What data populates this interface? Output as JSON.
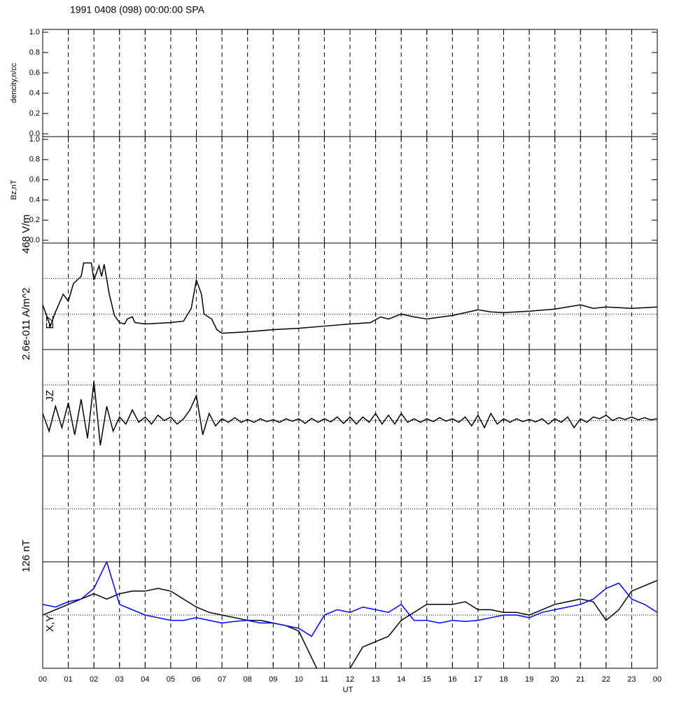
{
  "title": "1991 0408 (098) 00:00:00 SPA",
  "x_axis": {
    "label": "UT",
    "xlim": [
      0,
      24
    ],
    "xticks": [
      {
        "value": 0,
        "label": "00"
      },
      {
        "value": 1,
        "label": "01"
      },
      {
        "value": 2,
        "label": "02"
      },
      {
        "value": 3,
        "label": "03"
      },
      {
        "value": 4,
        "label": "04"
      },
      {
        "value": 5,
        "label": "05"
      },
      {
        "value": 6,
        "label": "06"
      },
      {
        "value": 7,
        "label": "07"
      },
      {
        "value": 8,
        "label": "08"
      },
      {
        "value": 9,
        "label": "09"
      },
      {
        "value": 10,
        "label": "10"
      },
      {
        "value": 11,
        "label": "11"
      },
      {
        "value": 12,
        "label": "12"
      },
      {
        "value": 13,
        "label": "13"
      },
      {
        "value": 14,
        "label": "14"
      },
      {
        "value": 15,
        "label": "15"
      },
      {
        "value": 16,
        "label": "16"
      },
      {
        "value": 17,
        "label": "17"
      },
      {
        "value": 18,
        "label": "18"
      },
      {
        "value": 19,
        "label": "19"
      },
      {
        "value": 20,
        "label": "20"
      },
      {
        "value": 21,
        "label": "21"
      },
      {
        "value": 22,
        "label": "22"
      },
      {
        "value": 23,
        "label": "23"
      },
      {
        "value": 24,
        "label": "00"
      }
    ]
  },
  "chart_data": [
    {
      "type": "line",
      "ylabel": "dencity,n/cc",
      "ylim": [
        0,
        1
      ],
      "yticks": [
        {
          "value": 0,
          "label": "0.0"
        },
        {
          "value": 0.2,
          "label": "0.2"
        },
        {
          "value": 0.4,
          "label": "0.4"
        },
        {
          "value": 0.6,
          "label": "0.6"
        },
        {
          "value": 0.8,
          "label": "0.8"
        },
        {
          "value": 1,
          "label": "1.0"
        }
      ],
      "x": [],
      "series": []
    },
    {
      "type": "line",
      "ylabel": "Bz,nT",
      "ylim": [
        0,
        1
      ],
      "yticks": [
        {
          "value": 0,
          "label": "0.0"
        },
        {
          "value": 0.2,
          "label": "0.2"
        },
        {
          "value": 0.4,
          "label": "0.4"
        },
        {
          "value": 0.6,
          "label": "0.6"
        },
        {
          "value": 0.8,
          "label": "0.8"
        },
        {
          "value": 1,
          "label": "1.0"
        }
      ],
      "x": [],
      "series": []
    },
    {
      "type": "line",
      "ylabel": "468 V/m",
      "label": "EZ",
      "ylim": [
        -1,
        2
      ],
      "ref_lines": [
        {
          "value": 0,
          "color": "#000000"
        },
        {
          "value": 1,
          "color": "#0000ff"
        }
      ],
      "x": [
        0,
        0.3,
        0.5,
        0.8,
        1,
        1.2,
        1.5,
        1.6,
        1.9,
        2,
        2.2,
        2.3,
        2.4,
        2.6,
        2.8,
        3,
        3.2,
        3.3,
        3.5,
        3.6,
        4,
        5,
        5.5,
        5.8,
        6,
        6.2,
        6.3,
        6.6,
        6.8,
        7,
        8,
        9,
        10,
        11,
        12,
        12.8,
        13.2,
        13.5,
        14,
        14.5,
        15,
        16,
        17,
        17.5,
        18,
        19,
        20,
        21,
        21.5,
        22,
        23,
        24
      ],
      "series": [
        {
          "color": "#000000",
          "values": [
            0.26,
            -0.34,
            0.06,
            0.56,
            0.36,
            0.86,
            1.06,
            1.44,
            1.44,
            0.96,
            1.36,
            1.06,
            1.4,
            0.56,
            -0.04,
            -0.24,
            -0.28,
            -0.14,
            -0.08,
            -0.24,
            -0.28,
            -0.24,
            -0.2,
            0.16,
            0.96,
            0.56,
            0,
            -0.14,
            -0.44,
            -0.54,
            -0.5,
            -0.44,
            -0.4,
            -0.34,
            -0.28,
            -0.24,
            -0.08,
            -0.14,
            0,
            -0.08,
            -0.14,
            -0.04,
            0.12,
            0.06,
            0.04,
            0.08,
            0.14,
            0.26,
            0.16,
            0.2,
            0.16,
            0.2
          ]
        }
      ]
    },
    {
      "type": "line",
      "ylabel": "2.6e-011 A/m^2",
      "label": "JZ",
      "ylim": [
        -1,
        2
      ],
      "ref_lines": [
        {
          "value": 0,
          "color": "#000000"
        },
        {
          "value": 1,
          "color": "#000000"
        }
      ],
      "x": [
        0,
        0.25,
        0.5,
        0.75,
        1,
        1.25,
        1.5,
        1.75,
        2,
        2.25,
        2.5,
        2.75,
        3,
        3.25,
        3.5,
        3.75,
        4,
        4.25,
        4.5,
        4.75,
        5,
        5.25,
        5.5,
        5.75,
        6,
        6.25,
        6.5,
        6.75,
        7,
        7.25,
        7.5,
        7.75,
        8,
        8.25,
        8.5,
        8.75,
        9,
        9.25,
        9.5,
        9.75,
        10,
        10.25,
        10.5,
        10.75,
        11,
        11.25,
        11.5,
        11.75,
        12,
        12.25,
        12.5,
        12.75,
        13,
        13.25,
        13.5,
        13.75,
        14,
        14.25,
        14.5,
        14.75,
        15,
        15.25,
        15.5,
        15.75,
        16,
        16.25,
        16.5,
        16.75,
        17,
        17.25,
        17.5,
        17.75,
        18,
        18.25,
        18.5,
        18.75,
        19,
        19.25,
        19.5,
        19.75,
        20,
        20.25,
        20.5,
        20.75,
        21,
        21.25,
        21.5,
        21.75,
        22,
        22.25,
        22.5,
        22.75,
        23,
        23.25,
        23.5,
        23.75,
        24
      ],
      "series": [
        {
          "color": "#000000",
          "values": [
            0.2,
            -0.3,
            0.4,
            -0.2,
            0.5,
            -0.4,
            0.6,
            -0.5,
            1.1,
            -0.7,
            0.4,
            -0.3,
            0.1,
            -0.1,
            0.3,
            -0.05,
            0.1,
            -0.1,
            0.15,
            0,
            0.1,
            -0.1,
            0.05,
            0.3,
            0.7,
            -0.4,
            0.2,
            -0.15,
            0.05,
            -0.05,
            0.08,
            -0.05,
            0.03,
            -0.05,
            0.05,
            -0.03,
            0.02,
            -0.05,
            0.05,
            -0.02,
            0.05,
            -0.08,
            0.06,
            -0.05,
            0.05,
            -0.04,
            0.1,
            -0.08,
            0.1,
            -0.1,
            0.1,
            -0.05,
            0.2,
            -0.1,
            0.15,
            -0.1,
            0.2,
            -0.05,
            0.05,
            -0.05,
            0.05,
            -0.03,
            0.08,
            -0.02,
            0.05,
            -0.05,
            0.1,
            -0.15,
            0.15,
            -0.2,
            0.2,
            -0.1,
            0.05,
            -0.05,
            0.05,
            -0.03,
            0.03,
            -0.04,
            0.05,
            -0.1,
            0.05,
            -0.05,
            0.1,
            -0.2,
            0.05,
            -0.05,
            0.1,
            0.05,
            0.15,
            0,
            0.08,
            0.03,
            0.1,
            0.02,
            0.08,
            0.02,
            0.05
          ]
        }
      ]
    },
    {
      "type": "line",
      "ylim": [
        -1,
        1
      ],
      "ref_lines": [
        {
          "value": 0,
          "color": "#000000"
        }
      ],
      "x": [],
      "series": []
    },
    {
      "type": "line",
      "ylabel": "126 nT",
      "label": "X,Y",
      "ylim": [
        -1,
        1
      ],
      "ref_lines": [
        {
          "value": 0,
          "color": "#000000"
        }
      ],
      "x": [
        0,
        0.5,
        1,
        1.5,
        2,
        2.5,
        3,
        3.5,
        4,
        4.5,
        5,
        5.5,
        6,
        6.5,
        7,
        7.5,
        8,
        8.5,
        9,
        9.5,
        10,
        10.5,
        11,
        11.5,
        12,
        12.5,
        13,
        13.5,
        14,
        14.5,
        15,
        15.5,
        16,
        16.5,
        17,
        17.5,
        18,
        18.5,
        19,
        19.5,
        20,
        20.5,
        21,
        21.5,
        22,
        22.5,
        23,
        23.5,
        24
      ],
      "series": [
        {
          "color": "#000000",
          "values": [
            0,
            0.1,
            0.2,
            0.3,
            0.4,
            0.3,
            0.4,
            0.45,
            0.45,
            0.5,
            0.45,
            0.3,
            0.15,
            0.05,
            0,
            -0.05,
            -0.1,
            -0.1,
            -0.15,
            -0.2,
            -0.3,
            -0.8,
            -1.3,
            -1.3,
            -1.0,
            -0.6,
            -0.5,
            -0.4,
            -0.1,
            0.05,
            0.2,
            0.2,
            0.2,
            0.25,
            0.1,
            0.1,
            0.05,
            0.05,
            0,
            0.1,
            0.2,
            0.25,
            0.3,
            0.25,
            -0.1,
            0.1,
            0.45,
            0.55,
            0.65
          ]
        },
        {
          "color": "#0000ff",
          "values": [
            0.2,
            0.15,
            0.25,
            0.3,
            0.5,
            1.0,
            0.2,
            0.1,
            0,
            -0.05,
            -0.1,
            -0.1,
            -0.05,
            -0.1,
            -0.15,
            -0.12,
            -0.1,
            -0.15,
            -0.15,
            -0.2,
            -0.25,
            -0.4,
            0,
            0.1,
            0.05,
            0.15,
            0.1,
            0.05,
            0.2,
            -0.1,
            -0.1,
            -0.15,
            -0.1,
            -0.12,
            -0.1,
            -0.05,
            0,
            0,
            -0.05,
            0.05,
            0.1,
            0.15,
            0.2,
            0.3,
            0.5,
            0.6,
            0.3,
            0.2,
            0.05
          ]
        }
      ]
    }
  ]
}
